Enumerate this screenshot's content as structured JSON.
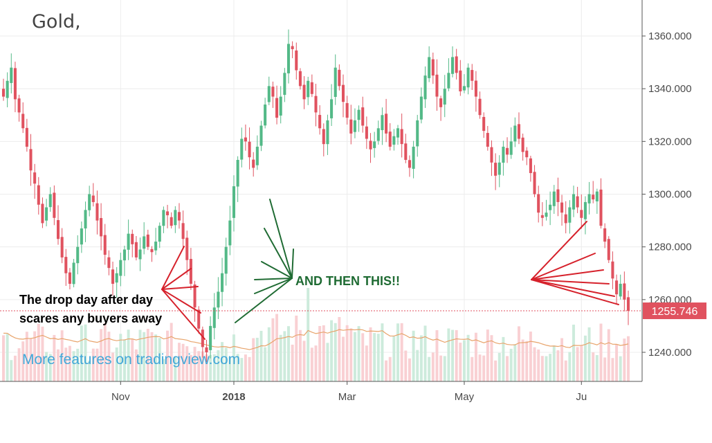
{
  "chart_title": "Gold,",
  "colors": {
    "up": "#53b987",
    "down": "#e0525f",
    "up_volume": "#cdebdc",
    "down_volume": "#f9d0d3",
    "moving_average": "#e8a36a",
    "arrow_red": "#d6212b",
    "arrow_green": "#1f6b33",
    "grid": "#ececec",
    "watermark": "#42a7d8",
    "price_tag": "#e0525f"
  },
  "annotations": {
    "drop_line_1": "The drop day after day",
    "drop_line_2": "scares any buyers away",
    "then_this": "AND THEN THIS!!"
  },
  "watermark": "More features on tradingview.com",
  "last_price_label": "1255.746",
  "chart_data": {
    "type": "candlestick",
    "title": "Gold,",
    "x_labels": [
      {
        "label": "Nov",
        "index": 30,
        "bold": false
      },
      {
        "label": "2018",
        "index": 59,
        "bold": true
      },
      {
        "label": "Mar",
        "index": 88,
        "bold": false
      },
      {
        "label": "May",
        "index": 118,
        "bold": false
      },
      {
        "label": "Ju",
        "index": 148,
        "bold": false
      }
    ],
    "y_ticks": [
      1240,
      1260,
      1280,
      1300,
      1320,
      1340,
      1360
    ],
    "y_tick_labels": [
      "1240.000",
      "1260.000",
      "1280.000",
      "1300.000",
      "1320.000",
      "1340.000",
      "1360.000"
    ],
    "ylim": [
      1230,
      1368
    ],
    "last_price": 1255.746,
    "closes": [
      1337,
      1343,
      1348,
      1336,
      1331,
      1325,
      1318,
      1309,
      1304,
      1296,
      1289,
      1295,
      1300,
      1291,
      1283,
      1276,
      1270,
      1266,
      1274,
      1280,
      1287,
      1294,
      1300,
      1297,
      1290,
      1284,
      1277,
      1272,
      1266,
      1270,
      1275,
      1279,
      1285,
      1281,
      1276,
      1279,
      1284,
      1280,
      1278,
      1282,
      1288,
      1294,
      1292,
      1288,
      1294,
      1290,
      1283,
      1275,
      1266,
      1257,
      1249,
      1242,
      1240,
      1250,
      1257,
      1263,
      1270,
      1280,
      1290,
      1303,
      1313,
      1321,
      1320,
      1314,
      1310,
      1318,
      1326,
      1334,
      1341,
      1337,
      1329,
      1337,
      1346,
      1357,
      1355,
      1347,
      1341,
      1336,
      1343,
      1338,
      1331,
      1325,
      1319,
      1328,
      1336,
      1348,
      1341,
      1335,
      1329,
      1323,
      1328,
      1332,
      1326,
      1321,
      1317,
      1320,
      1325,
      1330,
      1323,
      1318,
      1322,
      1325,
      1319,
      1313,
      1310,
      1318,
      1328,
      1337,
      1345,
      1352,
      1345,
      1337,
      1333,
      1340,
      1346,
      1352,
      1346,
      1339,
      1341,
      1348,
      1343,
      1337,
      1330,
      1324,
      1318,
      1312,
      1307,
      1312,
      1318,
      1315,
      1320,
      1326,
      1321,
      1316,
      1314,
      1308,
      1300,
      1293,
      1291,
      1293,
      1296,
      1301,
      1297,
      1293,
      1289,
      1295,
      1300,
      1295,
      1291,
      1297,
      1300,
      1298,
      1301,
      1288,
      1282,
      1275,
      1268,
      1262,
      1266,
      1260,
      1255.746
    ]
  }
}
